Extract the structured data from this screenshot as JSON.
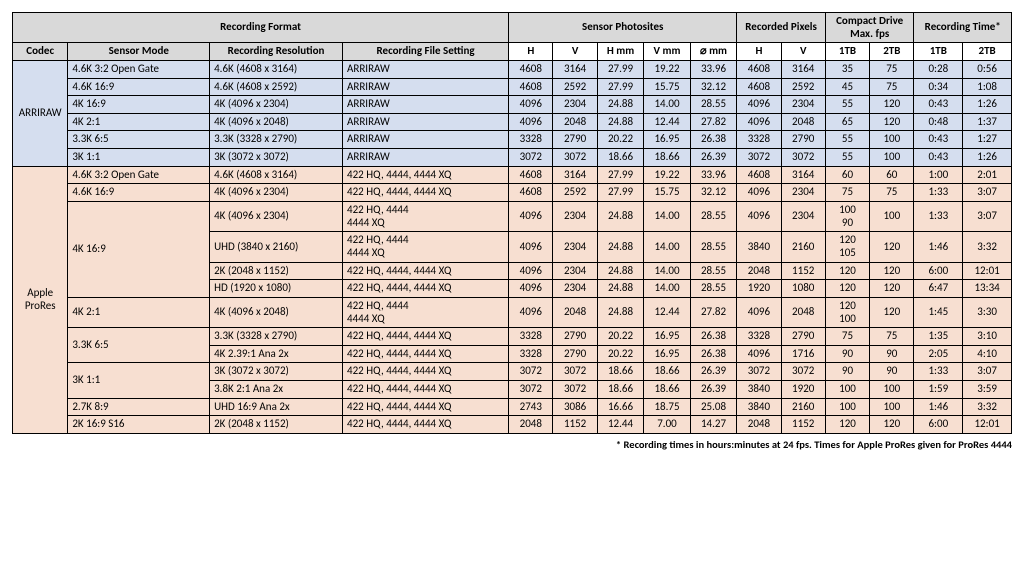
{
  "colors": {
    "header_bg": "#d9d9d9",
    "arriraw_bg": "#d5deef",
    "prores_bg": "#f7dfd1",
    "border": "#000000"
  },
  "headers": {
    "rec_format": "Recording Format",
    "sensor_photo": "Sensor Photosites",
    "rec_pixels": "Recorded Pixels",
    "compact_drive": "Compact Drive Max. fps",
    "rec_time": "Recording Time*",
    "codec": "Codec",
    "sensor_mode": "Sensor Mode",
    "rec_res": "Recording Resolution",
    "rec_file": "Recording File Setting",
    "H": "H",
    "V": "V",
    "Hmm": "H mm",
    "Vmm": "V mm",
    "diag": "⌀ mm",
    "tb1": "1TB",
    "tb2": "2TB"
  },
  "codecs": {
    "arriraw": "ARRIRAW",
    "prores": "Apple ProRes"
  },
  "footnote": "* Recording times in hours:minutes at 24 fps. Times for Apple ProRes given for ProRes 4444",
  "arriraw_rows": [
    {
      "mode": "4.6K 3:2 Open Gate",
      "res": "4.6K (4608 x 3164)",
      "file": "ARRIRAW",
      "sh": "4608",
      "sv": "3164",
      "hmm": "27.99",
      "vmm": "19.22",
      "d": "33.96",
      "rh": "4608",
      "rv": "3164",
      "f1": "35",
      "f2": "75",
      "t1": "0:28",
      "t2": "0:56"
    },
    {
      "mode": "4.6K 16:9",
      "res": "4.6K (4608 x 2592)",
      "file": "ARRIRAW",
      "sh": "4608",
      "sv": "2592",
      "hmm": "27.99",
      "vmm": "15.75",
      "d": "32.12",
      "rh": "4608",
      "rv": "2592",
      "f1": "45",
      "f2": "75",
      "t1": "0:34",
      "t2": "1:08"
    },
    {
      "mode": "4K 16:9",
      "res": "4K (4096 x 2304)",
      "file": "ARRIRAW",
      "sh": "4096",
      "sv": "2304",
      "hmm": "24.88",
      "vmm": "14.00",
      "d": "28.55",
      "rh": "4096",
      "rv": "2304",
      "f1": "55",
      "f2": "120",
      "t1": "0:43",
      "t2": "1:26"
    },
    {
      "mode": "4K 2:1",
      "res": "4K (4096 x 2048)",
      "file": "ARRIRAW",
      "sh": "4096",
      "sv": "2048",
      "hmm": "24.88",
      "vmm": "12.44",
      "d": "27.82",
      "rh": "4096",
      "rv": "2048",
      "f1": "65",
      "f2": "120",
      "t1": "0:48",
      "t2": "1:37"
    },
    {
      "mode": "3.3K 6:5",
      "res": "3.3K (3328 x 2790)",
      "file": "ARRIRAW",
      "sh": "3328",
      "sv": "2790",
      "hmm": "20.22",
      "vmm": "16.95",
      "d": "26.38",
      "rh": "3328",
      "rv": "2790",
      "f1": "55",
      "f2": "100",
      "t1": "0:43",
      "t2": "1:27"
    },
    {
      "mode": "3K 1:1",
      "res": "3K (3072 x 3072)",
      "file": "ARRIRAW",
      "sh": "3072",
      "sv": "3072",
      "hmm": "18.66",
      "vmm": "18.66",
      "d": "26.39",
      "rh": "3072",
      "rv": "3072",
      "f1": "55",
      "f2": "100",
      "t1": "0:43",
      "t2": "1:26"
    }
  ],
  "prores_rows": [
    {
      "mode": "4.6K 3:2 Open Gate",
      "mode_span": 1,
      "res": "4.6K (4608 x 3164)",
      "file": "422 HQ, 4444, 4444 XQ",
      "sh": "4608",
      "sv": "3164",
      "hmm": "27.99",
      "vmm": "19.22",
      "d": "33.96",
      "rh": "4608",
      "rv": "3164",
      "f1": "60",
      "f2": "60",
      "t1": "1:00",
      "t2": "2:01"
    },
    {
      "mode": "4.6K 16:9",
      "mode_span": 1,
      "res": "4K (4096 x 2304)",
      "file": "422 HQ, 4444, 4444 XQ",
      "sh": "4608",
      "sv": "2592",
      "hmm": "27.99",
      "vmm": "15.75",
      "d": "32.12",
      "rh": "4096",
      "rv": "2304",
      "f1": "75",
      "f2": "75",
      "t1": "1:33",
      "t2": "3:07"
    },
    {
      "mode": "4K 16:9",
      "mode_span": 4,
      "res": "4K (4096 x 2304)",
      "file": "422 HQ, 4444\n4444 XQ",
      "sh": "4096",
      "sv": "2304",
      "hmm": "24.88",
      "vmm": "14.00",
      "d": "28.55",
      "rh": "4096",
      "rv": "2304",
      "f1": "100\n90",
      "f2": "100",
      "t1": "1:33",
      "t2": "3:07"
    },
    {
      "res": "UHD (3840 x 2160)",
      "file": "422 HQ, 4444\n4444 XQ",
      "sh": "4096",
      "sv": "2304",
      "hmm": "24.88",
      "vmm": "14.00",
      "d": "28.55",
      "rh": "3840",
      "rv": "2160",
      "f1": "120\n105",
      "f2": "120",
      "t1": "1:46",
      "t2": "3:32"
    },
    {
      "res": "2K (2048 x 1152)",
      "file": "422 HQ, 4444, 4444 XQ",
      "sh": "4096",
      "sv": "2304",
      "hmm": "24.88",
      "vmm": "14.00",
      "d": "28.55",
      "rh": "2048",
      "rv": "1152",
      "f1": "120",
      "f2": "120",
      "t1": "6:00",
      "t2": "12:01"
    },
    {
      "res": "HD (1920 x 1080)",
      "file": "422 HQ, 4444, 4444 XQ",
      "sh": "4096",
      "sv": "2304",
      "hmm": "24.88",
      "vmm": "14.00",
      "d": "28.55",
      "rh": "1920",
      "rv": "1080",
      "f1": "120",
      "f2": "120",
      "t1": "6:47",
      "t2": "13:34"
    },
    {
      "mode": "4K 2:1",
      "mode_span": 1,
      "res": "4K (4096 x 2048)",
      "file": "422 HQ, 4444\n4444 XQ",
      "sh": "4096",
      "sv": "2048",
      "hmm": "24.88",
      "vmm": "12.44",
      "d": "27.82",
      "rh": "4096",
      "rv": "2048",
      "f1": "120\n100",
      "f2": "120",
      "t1": "1:45",
      "t2": "3:30"
    },
    {
      "mode": "3.3K 6:5",
      "mode_span": 2,
      "res": "3.3K (3328 x 2790)",
      "file": "422 HQ, 4444, 4444 XQ",
      "sh": "3328",
      "sv": "2790",
      "hmm": "20.22",
      "vmm": "16.95",
      "d": "26.38",
      "rh": "3328",
      "rv": "2790",
      "f1": "75",
      "f2": "75",
      "t1": "1:35",
      "t2": "3:10"
    },
    {
      "res": "4K 2.39:1 Ana 2x",
      "file": "422 HQ, 4444, 4444 XQ",
      "sh": "3328",
      "sv": "2790",
      "hmm": "20.22",
      "vmm": "16.95",
      "d": "26.38",
      "rh": "4096",
      "rv": "1716",
      "f1": "90",
      "f2": "90",
      "t1": "2:05",
      "t2": "4:10"
    },
    {
      "mode": "3K 1:1",
      "mode_span": 2,
      "res": "3K (3072 x 3072)",
      "file": "422 HQ, 4444, 4444 XQ",
      "sh": "3072",
      "sv": "3072",
      "hmm": "18.66",
      "vmm": "18.66",
      "d": "26.39",
      "rh": "3072",
      "rv": "3072",
      "f1": "90",
      "f2": "90",
      "t1": "1:33",
      "t2": "3:07"
    },
    {
      "res": "3.8K 2:1 Ana 2x",
      "file": "422 HQ, 4444, 4444 XQ",
      "sh": "3072",
      "sv": "3072",
      "hmm": "18.66",
      "vmm": "18.66",
      "d": "26.39",
      "rh": "3840",
      "rv": "1920",
      "f1": "100",
      "f2": "100",
      "t1": "1:59",
      "t2": "3:59"
    },
    {
      "mode": "2.7K 8:9",
      "mode_span": 1,
      "res": "UHD 16:9 Ana 2x",
      "file": "422 HQ, 4444, 4444 XQ",
      "sh": "2743",
      "sv": "3086",
      "hmm": "16.66",
      "vmm": "18.75",
      "d": "25.08",
      "rh": "3840",
      "rv": "2160",
      "f1": "100",
      "f2": "100",
      "t1": "1:46",
      "t2": "3:32"
    },
    {
      "mode": "2K 16:9 S16",
      "mode_span": 1,
      "res": "2K (2048 x 1152)",
      "file": "422 HQ, 4444, 4444 XQ",
      "sh": "2048",
      "sv": "1152",
      "hmm": "12.44",
      "vmm": "7.00",
      "d": "14.27",
      "rh": "2048",
      "rv": "1152",
      "f1": "120",
      "f2": "120",
      "t1": "6:00",
      "t2": "12:01"
    }
  ]
}
